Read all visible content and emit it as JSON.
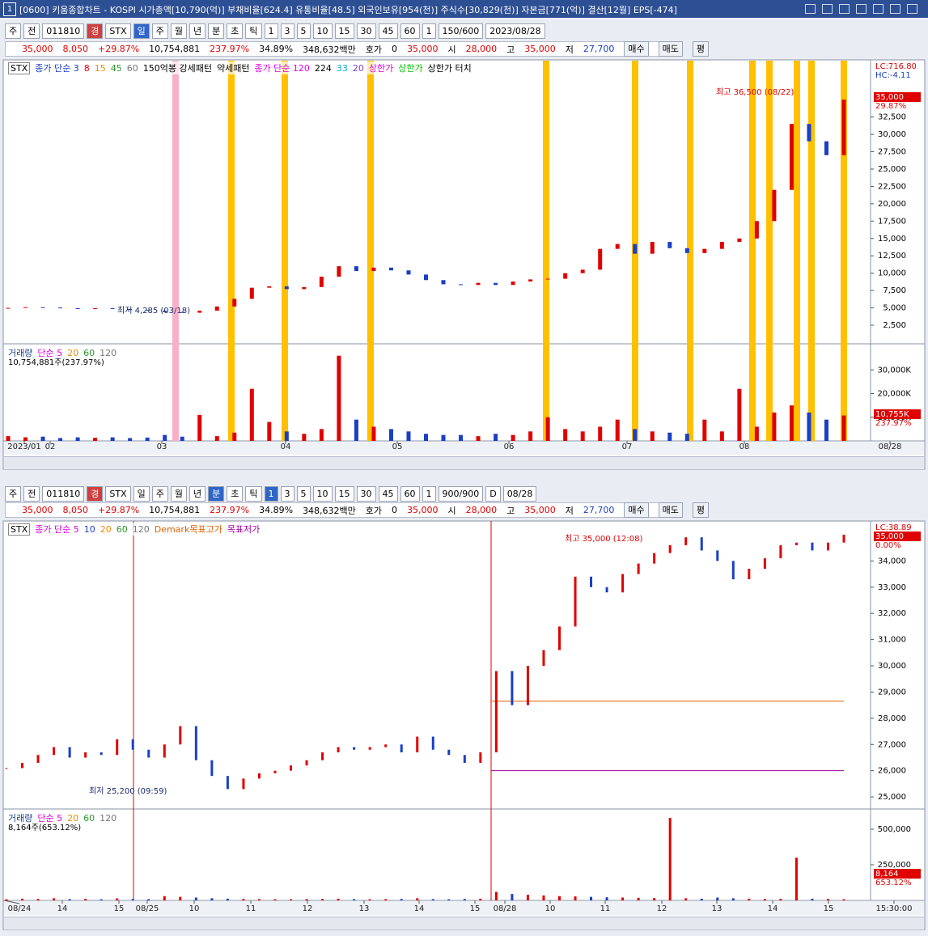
{
  "title_bar": {
    "number": "1",
    "title": "[0600] 키움종합차트 - KOSPI 시가총액[10,790(억)] 부채비율[624.4] 유통비율[48.5] 외국인보유[954(천)] 주식수[30,829(천)] 자본금[771(억)] 결산[12월] EPS[-474]"
  },
  "windows": [
    {
      "toolbar": [
        "주",
        "전",
        "011810",
        "경",
        "STX",
        "일",
        "주",
        "월",
        "년",
        "분",
        "초",
        "틱",
        "1",
        "3",
        "5",
        "10",
        "15",
        "30",
        "45",
        "60",
        "1",
        "150/600",
        "2023/08/28"
      ],
      "info": [
        "35,000",
        "8,050",
        "+29.87%",
        "10,754,881",
        "237.97%",
        "34.89%",
        "348,632백만",
        "호가",
        "0",
        "35,000",
        "시",
        "28,000",
        "고",
        "35,000",
        "저",
        "27,700",
        "매수",
        "매도",
        "평"
      ],
      "price": {
        "legend": [
          {
            "text": "STX",
            "color": "#000000"
          },
          {
            "text": "종가 단순 3",
            "color": "#1a3fc4"
          },
          {
            "text": "8",
            "color": "#e00000"
          },
          {
            "text": "15",
            "color": "#f08c00"
          },
          {
            "text": "45",
            "color": "#2a9a2a"
          },
          {
            "text": "60",
            "color": "#777777"
          },
          {
            "text": "150억봉 강세패턴",
            "color": "#000000"
          },
          {
            "text": "약세패턴",
            "color": "#000000"
          },
          {
            "text": "종가 단순 120",
            "color": "#e000e0"
          },
          {
            "text": "224",
            "color": "#000000"
          },
          {
            "text": "33",
            "color": "#00b0d0"
          },
          {
            "text": "20",
            "color": "#8040c0"
          },
          {
            "text": "상한가",
            "color": "#e000e0"
          },
          {
            "text": "상한가",
            "color": "#00c000"
          },
          {
            "text": "상한가 터치",
            "color": "#000000"
          }
        ],
        "ylim": [
          -180,
          40500
        ],
        "yticks": [
          {
            "value": 2500,
            "label": "2,500"
          },
          {
            "value": 5000,
            "label": "5,000"
          },
          {
            "value": 7500,
            "label": "7,500"
          },
          {
            "value": 10000,
            "label": "10,000"
          },
          {
            "value": 12500,
            "label": "12,500"
          },
          {
            "value": 15000,
            "label": "15,000"
          },
          {
            "value": 17500,
            "label": "17,500"
          },
          {
            "value": 20000,
            "label": "20,000"
          },
          {
            "value": 22500,
            "label": "22,500"
          },
          {
            "value": 25000,
            "label": "25,000"
          },
          {
            "value": 27500,
            "label": "27,500"
          },
          {
            "value": 30000,
            "label": "30,000"
          },
          {
            "value": 32500,
            "label": "32,500"
          }
        ],
        "values": [
          5000,
          5100,
          5050,
          4950,
          4900,
          4950,
          4850,
          4700,
          4600,
          4400,
          4300,
          4600,
          5200,
          6300,
          7900,
          8100,
          7700,
          8000,
          9500,
          11000,
          10300,
          10800,
          10400,
          9800,
          9000,
          8400,
          8300,
          8600,
          8300,
          8800,
          9100,
          9200,
          10000,
          10500,
          13500,
          14200,
          12800,
          14500,
          13600,
          12900,
          13500,
          14500,
          15000,
          17500,
          22000,
          31500,
          29000,
          27000,
          35000
        ],
        "high_label": "최고 36,500 (08/22)",
        "low_label": "최저 4,285 (03/18)",
        "right_labels": [
          "LC:716.80",
          "HC:-4.11",
          "35,000",
          "29.87%"
        ]
      },
      "volume": {
        "legend": [
          {
            "text": "거래량",
            "color": "#1a3f8a"
          },
          {
            "text": "단순 5",
            "color": "#e000e0"
          },
          {
            "text": "20",
            "color": "#f08c00"
          },
          {
            "text": "60",
            "color": "#2a9a2a"
          },
          {
            "text": "120",
            "color": "#777777"
          }
        ],
        "summary": "10,754,881주(237.97%)",
        "ylim": [
          0,
          40000
        ],
        "yticks": [
          {
            "value": 10000,
            "label": "10,000K"
          },
          {
            "value": 20000,
            "label": "20,000K"
          },
          {
            "value": 30000,
            "label": "30,000K"
          }
        ],
        "values": [
          2000,
          1500,
          1800,
          1200,
          1500,
          1300,
          1500,
          1200,
          1400,
          2500,
          1800,
          11000,
          2000,
          3500,
          22000,
          8000,
          4000,
          3000,
          5000,
          36000,
          9000,
          6000,
          5000,
          4000,
          3000,
          2500,
          2500,
          2000,
          3000,
          2500,
          4000,
          10000,
          5000,
          4000,
          6000,
          9000,
          5000,
          4000,
          3500,
          3000,
          9000,
          4000,
          22000,
          6000,
          12000,
          15000,
          12000,
          9000,
          10755
        ],
        "right_labels": [
          "10,755K",
          "237.97%"
        ]
      },
      "xlabels": [
        "2023/01",
        "02",
        "03",
        "04",
        "05",
        "06",
        "07",
        "08",
        "08/28"
      ]
    },
    {
      "toolbar": [
        "주",
        "전",
        "011810",
        "경",
        "STX",
        "일",
        "주",
        "월",
        "년",
        "분",
        "초",
        "틱",
        "1",
        "3",
        "5",
        "10",
        "15",
        "30",
        "45",
        "60",
        "1",
        "900/900",
        "D",
        "08/28"
      ],
      "info": [
        "35,000",
        "8,050",
        "+29.87%",
        "10,754,881",
        "237.97%",
        "34.89%",
        "348,632백만",
        "호가",
        "0",
        "35,000",
        "시",
        "28,000",
        "고",
        "35,000",
        "저",
        "27,700",
        "매수",
        "매도",
        "평"
      ],
      "price": {
        "legend": [
          {
            "text": "STX",
            "color": "#000000"
          },
          {
            "text": "종가 단순 5",
            "color": "#e000e0"
          },
          {
            "text": "10",
            "color": "#1a3fc4"
          },
          {
            "text": "20",
            "color": "#f08c00"
          },
          {
            "text": "60",
            "color": "#2a9a2a"
          },
          {
            "text": "120",
            "color": "#777777"
          },
          {
            "text": "Demark목표고가",
            "color": "#e06000"
          },
          {
            "text": "목표저가",
            "color": "#a000a0"
          }
        ],
        "ylim": [
          24540,
          35400
        ],
        "yticks": [
          {
            "value": 25000,
            "label": "25,000"
          },
          {
            "value": 26000,
            "label": "26,000"
          },
          {
            "value": 27000,
            "label": "27,000"
          },
          {
            "value": 28000,
            "label": "28,000"
          },
          {
            "value": 29000,
            "label": "29,000"
          },
          {
            "value": 30000,
            "label": "30,000"
          },
          {
            "value": 31000,
            "label": "31,000"
          },
          {
            "value": 32000,
            "label": "32,000"
          },
          {
            "value": 33000,
            "label": "33,000"
          },
          {
            "value": 34000,
            "label": "34,000"
          }
        ],
        "values": [
          26100,
          26300,
          26600,
          26900,
          26500,
          26700,
          26600,
          27200,
          26800,
          26500,
          27000,
          27700,
          26400,
          25800,
          25300,
          25700,
          25900,
          26000,
          26200,
          26400,
          26700,
          26900,
          26800,
          26900,
          27000,
          26700,
          27300,
          26800,
          26600,
          26300,
          26700,
          29800,
          28500,
          30000,
          30600,
          31500,
          33400,
          33000,
          32800,
          33500,
          33900,
          34300,
          34600,
          34900,
          34400,
          34000,
          33300,
          33700,
          34100,
          34600,
          34700,
          34400,
          34700,
          35000
        ],
        "demark_high": 28650,
        "demark_low": 26000,
        "high_label": "최고 35,000 (12:08)",
        "low_label": "최저 25,200 (09:59)",
        "right_labels": [
          "LC:38.89",
          "35,000",
          "0.00%"
        ]
      },
      "volume": {
        "legend": [
          {
            "text": "거래량",
            "color": "#1a3f8a"
          },
          {
            "text": "단순 5",
            "color": "#e000e0"
          },
          {
            "text": "20",
            "color": "#f08c00"
          },
          {
            "text": "60",
            "color": "#2a9a2a"
          },
          {
            "text": "120",
            "color": "#777777"
          }
        ],
        "summary": "8,164주(653.12%)",
        "ylim": [
          0,
          625000
        ],
        "yticks": [
          {
            "value": 250000,
            "label": "250,000"
          },
          {
            "value": 500000,
            "label": "500,000"
          }
        ],
        "values": [
          8000,
          12000,
          10000,
          15000,
          9000,
          11000,
          8000,
          14000,
          10000,
          9000,
          30000,
          25000,
          20000,
          15000,
          12000,
          10000,
          9000,
          8000,
          8000,
          9000,
          10000,
          12000,
          9000,
          8000,
          9000,
          10000,
          15000,
          9000,
          8000,
          10000,
          12000,
          60000,
          45000,
          40000,
          35000,
          30000,
          28000,
          25000,
          22000,
          20000,
          18000,
          16000,
          580000,
          15000,
          12000,
          20000,
          15000,
          12000,
          10000,
          11000,
          300000,
          12000,
          10000,
          8164
        ],
        "right_labels": [
          "8,164",
          "653.12%"
        ]
      },
      "xlabels": [
        "08/24",
        "14",
        "15",
        "08/25",
        "10",
        "11",
        "12",
        "13",
        "14",
        "15",
        "08/28",
        "10",
        "11",
        "12",
        "13",
        "14",
        "15",
        "15:30:00"
      ]
    }
  ]
}
